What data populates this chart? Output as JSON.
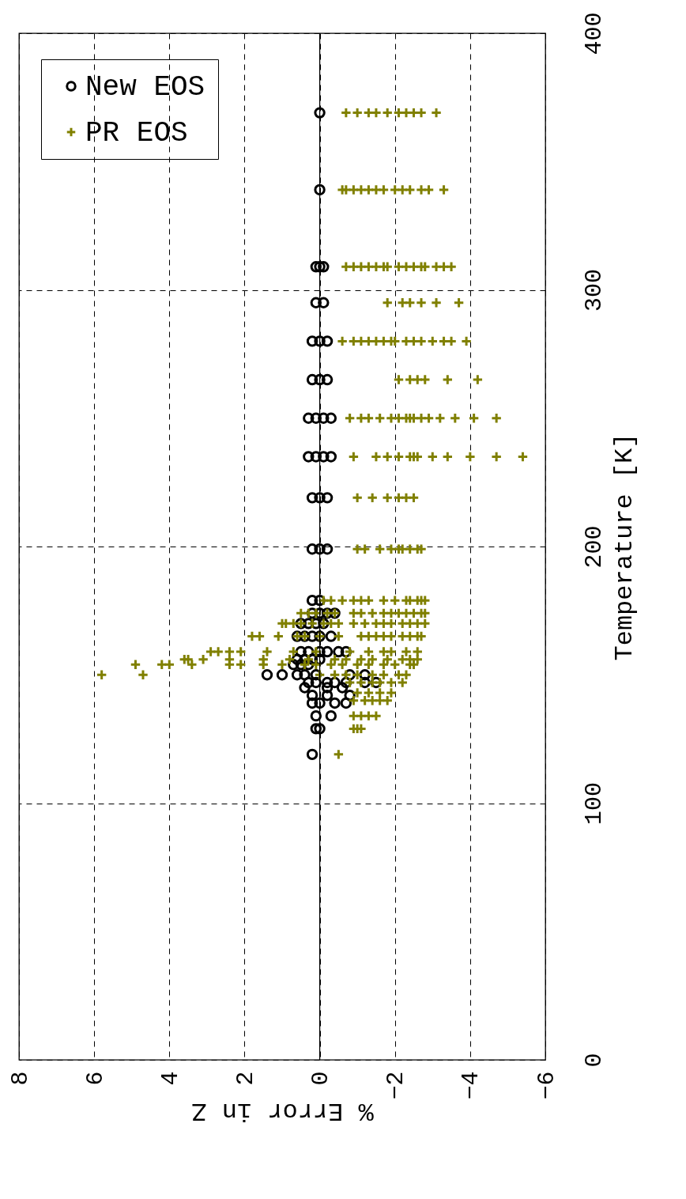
{
  "chart_data": {
    "type": "scatter",
    "xlabel": "% Error in Z",
    "ylabel": "Temperature [K]",
    "xlim": [
      8,
      -6
    ],
    "xticks": [
      8,
      6,
      4,
      2,
      0,
      -2,
      -4,
      -6
    ],
    "ylim": [
      0,
      400
    ],
    "yticks": [
      0,
      100,
      200,
      300,
      400
    ],
    "grid": true,
    "legend": "top left",
    "ref_lines": [
      {
        "axis": "x",
        "value": 0,
        "color": "#000000",
        "line_style": "solid"
      }
    ],
    "series": [
      {
        "name": "New EOS",
        "color": "#000000",
        "marker": "circle",
        "values": [
          369,
          339,
          309,
          309,
          309,
          295,
          295,
          280,
          280,
          280,
          265,
          265,
          265,
          250,
          250,
          250,
          250,
          235,
          235,
          235,
          235,
          219,
          219,
          219,
          199,
          199,
          199,
          179,
          179,
          174,
          174,
          174,
          174,
          170,
          170,
          170,
          170,
          165,
          165,
          165,
          165,
          165,
          159,
          159,
          159,
          159,
          159,
          159,
          156,
          156,
          156,
          156,
          154,
          154,
          154,
          150,
          150,
          150,
          150,
          150,
          150,
          150,
          147,
          147,
          147,
          147,
          147,
          147,
          147,
          145,
          145,
          145,
          142,
          142,
          142,
          139,
          139,
          139,
          139,
          134,
          134,
          129,
          129,
          119
        ],
        "x": [
          0.0,
          0.0,
          0.1,
          0.0,
          -0.1,
          0.1,
          -0.1,
          0.2,
          0.0,
          -0.2,
          0.2,
          0.0,
          -0.2,
          0.3,
          0.1,
          -0.1,
          -0.3,
          0.3,
          0.1,
          -0.1,
          -0.3,
          0.2,
          0.0,
          -0.2,
          0.2,
          0.0,
          -0.2,
          0.2,
          0.0,
          0.2,
          0.0,
          -0.2,
          -0.4,
          0.5,
          0.3,
          0.1,
          -0.1,
          0.6,
          0.4,
          0.2,
          0.0,
          -0.3,
          0.5,
          0.3,
          0.0,
          -0.2,
          -0.5,
          -0.7,
          0.6,
          0.4,
          0.2,
          0.0,
          0.7,
          0.5,
          0.3,
          1.4,
          1.0,
          0.6,
          0.4,
          0.1,
          -0.8,
          -1.2,
          0.3,
          0.1,
          -0.2,
          -0.4,
          -0.7,
          -1.2,
          -1.5,
          0.4,
          -0.2,
          -0.6,
          0.2,
          -0.2,
          -0.8,
          0.2,
          0.0,
          -0.4,
          -0.7,
          0.1,
          -0.3,
          0.1,
          0.0,
          0.2
        ]
      },
      {
        "name": "PR EOS",
        "color": "#808000",
        "marker": "cross",
        "values": [
          369,
          369,
          369,
          369,
          369,
          369,
          369,
          369,
          369,
          369,
          339,
          339,
          339,
          339,
          339,
          339,
          339,
          339,
          339,
          339,
          339,
          339,
          339,
          309,
          309,
          309,
          309,
          309,
          309,
          309,
          309,
          309,
          309,
          309,
          309,
          309,
          309,
          309,
          295,
          295,
          295,
          295,
          295,
          295,
          280,
          280,
          280,
          280,
          280,
          280,
          280,
          280,
          280,
          280,
          280,
          280,
          280,
          280,
          280,
          265,
          265,
          265,
          265,
          265,
          265,
          250,
          250,
          250,
          250,
          250,
          250,
          250,
          250,
          250,
          250,
          250,
          250,
          250,
          250,
          250,
          235,
          235,
          235,
          235,
          235,
          235,
          235,
          235,
          235,
          235,
          235,
          235,
          219,
          219,
          219,
          219,
          219,
          219,
          199,
          199,
          199,
          199,
          199,
          199,
          199,
          199,
          199,
          179,
          179,
          179,
          179,
          179,
          179,
          179,
          179,
          179,
          179,
          179,
          179,
          179,
          174,
          174,
          174,
          174,
          174,
          174,
          174,
          174,
          174,
          174,
          174,
          174,
          174,
          174,
          174,
          170,
          170,
          170,
          170,
          170,
          170,
          170,
          170,
          170,
          170,
          170,
          170,
          170,
          170,
          170,
          170,
          170,
          165,
          165,
          165,
          165,
          165,
          165,
          165,
          165,
          165,
          165,
          165,
          165,
          165,
          165,
          165,
          165,
          159,
          159,
          159,
          159,
          159,
          159,
          159,
          159,
          159,
          159,
          159,
          159,
          159,
          156,
          156,
          156,
          156,
          156,
          156,
          156,
          156,
          156,
          156,
          156,
          156,
          156,
          156,
          156,
          154,
          154,
          154,
          154,
          154,
          154,
          154,
          154,
          154,
          154,
          154,
          154,
          154,
          154,
          154,
          154,
          154,
          154,
          150,
          150,
          150,
          150,
          150,
          150,
          150,
          150,
          150,
          150,
          147,
          147,
          147,
          147,
          147,
          147,
          143,
          143,
          143,
          143,
          140,
          140,
          140,
          140,
          140,
          134,
          134,
          134,
          134,
          129,
          129,
          129,
          119
        ],
        "x": [
          -0.7,
          -1.0,
          -1.3,
          -1.5,
          -1.8,
          -2.1,
          -2.3,
          -2.5,
          -2.7,
          -3.1,
          -0.6,
          -0.7,
          -0.9,
          -1.1,
          -1.3,
          -1.5,
          -1.7,
          -2.0,
          -2.2,
          -2.4,
          -2.7,
          -2.9,
          -3.3,
          -0.7,
          -0.9,
          -1.1,
          -1.3,
          -1.5,
          -1.7,
          -1.8,
          -2.1,
          -2.3,
          -2.5,
          -2.7,
          -2.8,
          -3.1,
          -3.3,
          -3.5,
          -1.8,
          -2.2,
          -2.4,
          -2.7,
          -3.1,
          -3.7,
          -0.6,
          -0.9,
          -1.1,
          -1.3,
          -1.5,
          -1.7,
          -1.9,
          -2.0,
          -2.3,
          -2.5,
          -2.7,
          -3.0,
          -3.3,
          -3.5,
          -3.9,
          -2.1,
          -2.4,
          -2.6,
          -2.8,
          -3.4,
          -4.2,
          -0.8,
          -1.1,
          -1.3,
          -1.6,
          -1.9,
          -2.1,
          -2.3,
          -2.4,
          -2.5,
          -2.7,
          -2.9,
          -3.2,
          -3.6,
          -4.1,
          -4.7,
          -0.9,
          -1.5,
          -1.8,
          -2.1,
          -2.4,
          -2.5,
          -2.6,
          -3.0,
          -3.4,
          -4.0,
          -4.7,
          -5.4,
          -1.0,
          -1.4,
          -1.8,
          -2.1,
          -2.3,
          -2.5,
          -1.0,
          -1.2,
          -1.6,
          -1.9,
          -2.1,
          -2.2,
          -2.4,
          -2.6,
          -2.7,
          -0.1,
          -0.3,
          -0.6,
          -0.9,
          -1.1,
          -1.3,
          -1.7,
          -2.0,
          -2.3,
          -2.4,
          -2.6,
          -2.7,
          -2.8,
          0.5,
          0.3,
          0.1,
          -0.2,
          -0.4,
          -0.9,
          -1.1,
          -1.4,
          -1.7,
          -1.9,
          -2.1,
          -2.3,
          -2.5,
          -2.7,
          -2.8,
          1.0,
          0.9,
          0.7,
          0.5,
          0.2,
          -0.1,
          -0.3,
          -0.5,
          -0.9,
          -1.2,
          -1.5,
          -1.7,
          -1.9,
          -2.2,
          -2.4,
          -2.6,
          -2.8,
          1.8,
          1.6,
          1.1,
          0.6,
          0.4,
          0.0,
          -0.5,
          -1.1,
          -1.3,
          -1.5,
          -1.7,
          -1.9,
          -2.2,
          -2.4,
          -2.6,
          -2.7,
          2.9,
          2.7,
          2.4,
          2.1,
          1.4,
          0.7,
          0.1,
          -0.8,
          -1.3,
          -1.7,
          -1.9,
          -2.3,
          -2.6,
          3.6,
          3.5,
          3.1,
          2.4,
          1.5,
          0.8,
          0.3,
          -0.4,
          -0.7,
          -1.1,
          -1.4,
          -1.8,
          -2.2,
          -2.4,
          -2.6,
          4.9,
          4.2,
          4.0,
          3.4,
          2.4,
          2.1,
          1.5,
          1.0,
          0.4,
          0.1,
          -0.3,
          -0.6,
          -1.0,
          -1.3,
          -1.7,
          -2.0,
          -2.4,
          -2.5,
          5.8,
          4.7,
          0.0,
          -0.4,
          -0.7,
          -1.0,
          -1.4,
          -1.7,
          -2.1,
          -2.3,
          -0.8,
          -1.1,
          -1.4,
          -1.6,
          -1.9,
          -2.2,
          -1.0,
          -1.3,
          -1.6,
          -1.9,
          -0.9,
          -1.2,
          -1.4,
          -1.6,
          -1.8,
          -0.9,
          -1.1,
          -1.3,
          -1.5,
          -0.9,
          -1.0,
          -1.1,
          -0.5
        ]
      }
    ]
  }
}
